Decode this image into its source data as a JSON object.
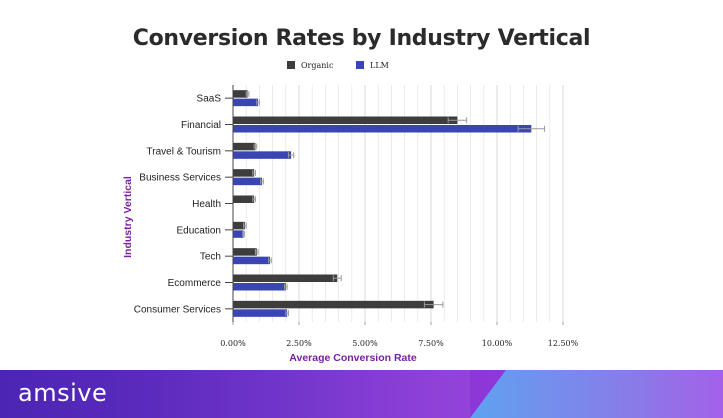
{
  "title": "Conversion Rates by Industry Vertical",
  "footer": {
    "logo_text": "amsive"
  },
  "colors": {
    "organic": "#3d3d3d",
    "llm": "#3a45b4",
    "axis_title": "#7a1fa2",
    "grid": "#d8d8d8"
  },
  "chart_data": {
    "type": "bar",
    "orientation": "horizontal",
    "title": "Conversion Rates by Industry Vertical",
    "xlabel": "Average Conversion Rate",
    "ylabel": "Industry Vertical",
    "xlim": [
      0,
      12.5
    ],
    "xticks": [
      0,
      2.5,
      5,
      7.5,
      10,
      12.5
    ],
    "xtick_labels": [
      "0.00%",
      "2.50%",
      "5.00%",
      "7.50%",
      "10.00%",
      "12.50%"
    ],
    "legend": [
      "Organic",
      "LLM"
    ],
    "legend_position": "top",
    "categories": [
      "SaaS",
      "Financial",
      "Travel & Tourism",
      "Business Services",
      "Health",
      "Education",
      "Tech",
      "Ecommerce",
      "Consumer Services"
    ],
    "series": [
      {
        "name": "Organic",
        "values": [
          0.55,
          8.5,
          0.85,
          0.8,
          0.8,
          0.45,
          0.9,
          3.95,
          7.6
        ],
        "errors": [
          0.05,
          0.35,
          0.05,
          0.05,
          0.05,
          0.05,
          0.05,
          0.15,
          0.35
        ]
      },
      {
        "name": "LLM",
        "values": [
          0.95,
          11.3,
          2.2,
          1.1,
          null,
          0.4,
          1.4,
          2.0,
          2.05
        ],
        "errors": [
          0.05,
          0.5,
          0.1,
          0.05,
          null,
          0.03,
          0.05,
          0.05,
          0.05
        ]
      }
    ]
  }
}
